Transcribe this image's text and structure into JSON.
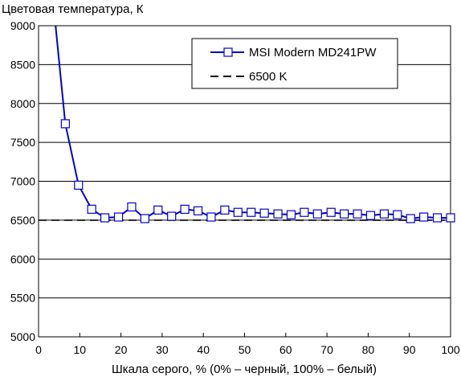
{
  "chart_data": {
    "type": "line",
    "title": "",
    "ylabel": "Цветовая температура, К",
    "xlabel": "Шкала серого, % (0% – черный, 100% – белый)",
    "xlim": [
      0,
      100
    ],
    "ylim": [
      5000,
      9000
    ],
    "xticks": [
      0,
      10,
      20,
      30,
      40,
      50,
      60,
      70,
      80,
      90,
      100
    ],
    "yticks": [
      5000,
      5500,
      6000,
      6500,
      7000,
      7500,
      8000,
      8500,
      9000
    ],
    "grid": "horizontal",
    "legend": "top-right",
    "series": [
      {
        "name": "MSI Modern MD241PW",
        "color": "#0000cc",
        "marker": "square",
        "x": [
          3.2,
          6.5,
          9.7,
          12.9,
          16.1,
          19.4,
          22.6,
          25.8,
          29.0,
          32.3,
          35.5,
          38.7,
          41.9,
          45.2,
          48.4,
          51.6,
          54.8,
          58.1,
          61.3,
          64.5,
          67.7,
          71.0,
          74.2,
          77.4,
          80.6,
          83.9,
          87.1,
          90.3,
          93.5,
          96.8,
          100.0
        ],
        "y": [
          9500,
          7740,
          6950,
          6640,
          6530,
          6540,
          6670,
          6520,
          6630,
          6550,
          6640,
          6620,
          6540,
          6630,
          6600,
          6600,
          6590,
          6580,
          6570,
          6600,
          6580,
          6600,
          6580,
          6580,
          6560,
          6580,
          6570,
          6520,
          6540,
          6530,
          6530
        ]
      },
      {
        "name": "6500 K",
        "color": "#000000",
        "dash": "dashed",
        "x": [
          0,
          100
        ],
        "y": [
          6500,
          6500
        ]
      }
    ]
  }
}
